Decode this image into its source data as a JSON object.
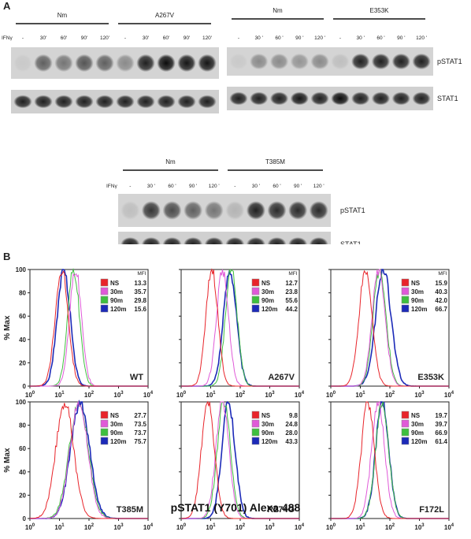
{
  "panels": {
    "a_label": "A",
    "b_label": "B"
  },
  "blots": {
    "ifn_label": "IFNγ",
    "band_labels": [
      "pSTAT1",
      "STAT1"
    ],
    "left": {
      "groups": [
        "Nm",
        "A267V"
      ],
      "lanes": [
        "-",
        "30'",
        "60'",
        "90'",
        "120'",
        "-",
        "30'",
        "60'",
        "90'",
        "120'"
      ],
      "pSTAT1_intensity": [
        0.05,
        0.55,
        0.45,
        0.6,
        0.55,
        0.35,
        0.85,
        0.95,
        0.9,
        0.9
      ],
      "STAT1_intensity": [
        0.85,
        0.85,
        0.85,
        0.85,
        0.85,
        0.85,
        0.85,
        0.85,
        0.85,
        0.85
      ]
    },
    "right": {
      "groups": [
        "Nm",
        "E353K"
      ],
      "lanes": [
        "-",
        "30 '",
        "60 '",
        "90 '",
        "120 '",
        "-",
        "30 '",
        "60 '",
        "90 '",
        "120 '"
      ],
      "pSTAT1_intensity": [
        0.05,
        0.35,
        0.35,
        0.3,
        0.35,
        0.1,
        0.85,
        0.85,
        0.85,
        0.85
      ],
      "STAT1_intensity": [
        0.85,
        0.85,
        0.85,
        0.9,
        0.85,
        0.95,
        0.85,
        0.85,
        0.85,
        0.85
      ]
    },
    "bottom": {
      "groups": [
        "Nm",
        "T385M"
      ],
      "lanes": [
        "-",
        "30 '",
        "60 '",
        "90 '",
        "120 '",
        "-",
        "30 '",
        "60 '",
        "90 '",
        "120 '"
      ],
      "pSTAT1_intensity": [
        0.1,
        0.75,
        0.65,
        0.55,
        0.45,
        0.15,
        0.85,
        0.8,
        0.8,
        0.8
      ],
      "STAT1_intensity": [
        0.85,
        0.85,
        0.85,
        0.85,
        0.85,
        0.85,
        0.85,
        0.85,
        0.85,
        0.85
      ]
    }
  },
  "histograms": {
    "y_label": "% Max",
    "x_label": "pSTAT1 (Y701) Alexa 488",
    "mfi_label": "MFI",
    "colors": {
      "NS": "#e8242a",
      "30m": "#e05ad8",
      "90m": "#3fbf3f",
      "120m": "#1c2ab8"
    }
  },
  "chart_data": [
    {
      "type": "area",
      "name": "WT",
      "x_scale": "log",
      "xlim": [
        1,
        10000
      ],
      "ylim": [
        0,
        100
      ],
      "y_ticks": [
        "0",
        "20",
        "40",
        "60",
        "80",
        "100"
      ],
      "x_ticks": [
        "10^0",
        "10^1",
        "10^2",
        "10^3",
        "10^4"
      ],
      "series": [
        {
          "name": "NS",
          "mfi": "13.3",
          "peak": 12,
          "width": 0.22
        },
        {
          "name": "30m",
          "mfi": "35.7",
          "peak": 35,
          "width": 0.2
        },
        {
          "name": "90m",
          "mfi": "29.8",
          "peak": 30,
          "width": 0.2
        },
        {
          "name": "120m",
          "mfi": "15.6",
          "peak": 14,
          "width": 0.22
        }
      ]
    },
    {
      "type": "area",
      "name": "A267V",
      "x_scale": "log",
      "xlim": [
        1,
        10000
      ],
      "ylim": [
        0,
        100
      ],
      "y_ticks": [
        "0",
        "20",
        "40",
        "60",
        "80",
        "100"
      ],
      "x_ticks": [
        "10^0",
        "10^1",
        "10^2",
        "10^3",
        "10^4"
      ],
      "series": [
        {
          "name": "NS",
          "mfi": "12.7",
          "peak": 11,
          "width": 0.2
        },
        {
          "name": "30m",
          "mfi": "23.8",
          "peak": 25,
          "width": 0.2
        },
        {
          "name": "90m",
          "mfi": "55.6",
          "peak": 50,
          "width": 0.2
        },
        {
          "name": "120m",
          "mfi": "44.2",
          "peak": 45,
          "width": 0.22
        }
      ]
    },
    {
      "type": "area",
      "name": "E353K",
      "x_scale": "log",
      "xlim": [
        1,
        10000
      ],
      "ylim": [
        0,
        100
      ],
      "y_ticks": [
        "0",
        "20",
        "40",
        "60",
        "80",
        "100"
      ],
      "x_ticks": [
        "10^0",
        "10^1",
        "10^2",
        "10^3",
        "10^4"
      ],
      "series": [
        {
          "name": "NS",
          "mfi": "15.9",
          "peak": 15,
          "width": 0.22
        },
        {
          "name": "30m",
          "mfi": "40.3",
          "peak": 42,
          "width": 0.22
        },
        {
          "name": "90m",
          "mfi": "42.0",
          "peak": 45,
          "width": 0.22
        },
        {
          "name": "120m",
          "mfi": "66.7",
          "peak": 60,
          "width": 0.26
        }
      ]
    },
    {
      "type": "area",
      "name": "T385M",
      "x_scale": "log",
      "xlim": [
        1,
        10000
      ],
      "ylim": [
        0,
        100
      ],
      "y_ticks": [
        "0",
        "20",
        "40",
        "60",
        "80",
        "100"
      ],
      "x_ticks": [
        "10^0",
        "10^1",
        "10^2",
        "10^3",
        "10^4"
      ],
      "series": [
        {
          "name": "NS",
          "mfi": "27.7",
          "peak": 15,
          "width": 0.3
        },
        {
          "name": "30m",
          "mfi": "73.5",
          "peak": 45,
          "width": 0.3
        },
        {
          "name": "90m",
          "mfi": "73.7",
          "peak": 45,
          "width": 0.32
        },
        {
          "name": "120m",
          "mfi": "75.7",
          "peak": 50,
          "width": 0.32
        }
      ]
    },
    {
      "type": "area",
      "name": "R274G",
      "x_scale": "log",
      "xlim": [
        1,
        10000
      ],
      "ylim": [
        0,
        100
      ],
      "y_ticks": [
        "0",
        "20",
        "40",
        "60",
        "80",
        "100"
      ],
      "x_ticks": [
        "10^0",
        "10^1",
        "10^2",
        "10^3",
        "10^4"
      ],
      "series": [
        {
          "name": "NS",
          "mfi": "9.8",
          "peak": 8,
          "width": 0.22
        },
        {
          "name": "30m",
          "mfi": "24.8",
          "peak": 25,
          "width": 0.22
        },
        {
          "name": "90m",
          "mfi": "28.0",
          "peak": 28,
          "width": 0.22
        },
        {
          "name": "120m",
          "mfi": "43.3",
          "peak": 40,
          "width": 0.22
        }
      ]
    },
    {
      "type": "area",
      "name": "F172L",
      "x_scale": "log",
      "xlim": [
        1,
        10000
      ],
      "ylim": [
        0,
        100
      ],
      "y_ticks": [
        "0",
        "20",
        "40",
        "60",
        "80",
        "100"
      ],
      "x_ticks": [
        "10^0",
        "10^1",
        "10^2",
        "10^3",
        "10^4"
      ],
      "series": [
        {
          "name": "NS",
          "mfi": "19.7",
          "peak": 18,
          "width": 0.22
        },
        {
          "name": "30m",
          "mfi": "39.7",
          "peak": 40,
          "width": 0.22
        },
        {
          "name": "90m",
          "mfi": "66.9",
          "peak": 55,
          "width": 0.22
        },
        {
          "name": "120m",
          "mfi": "61.4",
          "peak": 55,
          "width": 0.22
        }
      ]
    }
  ]
}
